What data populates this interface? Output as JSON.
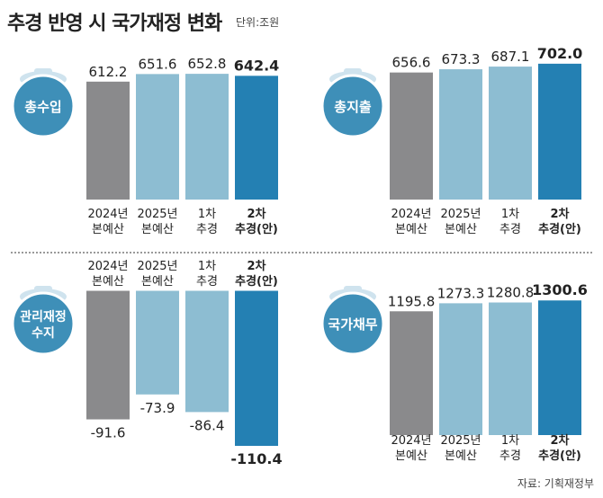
{
  "title": "추경 반영 시 국가재정 변화",
  "unit": "단위:조원",
  "source": "자료: 기획재정부",
  "colors": {
    "gray": "#8a8a8c",
    "light": "#8dbdd2",
    "dark": "#2480b3",
    "bag": "#3e8fb8",
    "bag_light": "#cfe3ee"
  },
  "chart_data": [
    {
      "type": "bar",
      "title": "총수입",
      "categories": [
        [
          "2024년",
          "본예산"
        ],
        [
          "2025년",
          "본예산"
        ],
        [
          "1차",
          "추경"
        ],
        [
          "2차",
          "추경(안)"
        ]
      ],
      "values": [
        612.2,
        651.6,
        652.8,
        642.4
      ],
      "labels": [
        "612.2",
        "651.6",
        "652.8",
        "642.4"
      ]
    },
    {
      "type": "bar",
      "title": "총지출",
      "categories": [
        [
          "2024년",
          "본예산"
        ],
        [
          "2025년",
          "본예산"
        ],
        [
          "1차",
          "추경"
        ],
        [
          "2차",
          "추경(안)"
        ]
      ],
      "values": [
        656.6,
        673.3,
        687.1,
        702.0
      ],
      "labels": [
        "656.6",
        "673.3",
        "687.1",
        "702.0"
      ]
    },
    {
      "type": "bar",
      "title": [
        "관리재정",
        "수지"
      ],
      "categories": [
        [
          "2024년",
          "본예산"
        ],
        [
          "2025년",
          "본예산"
        ],
        [
          "1차",
          "추경"
        ],
        [
          "2차",
          "추경(안)"
        ]
      ],
      "values": [
        -91.6,
        -73.9,
        -86.4,
        -110.4
      ],
      "labels": [
        "-91.6",
        "-73.9",
        "-86.4",
        "-110.4"
      ]
    },
    {
      "type": "bar",
      "title": "국가채무",
      "categories": [
        [
          "2024년",
          "본예산"
        ],
        [
          "2025년",
          "본예산"
        ],
        [
          "1차",
          "추경"
        ],
        [
          "2차",
          "추경(안)"
        ]
      ],
      "values": [
        1195.8,
        1273.3,
        1280.8,
        1300.6
      ],
      "labels": [
        "1195.8",
        "1273.3",
        "1280.8",
        "1300.6"
      ]
    }
  ]
}
